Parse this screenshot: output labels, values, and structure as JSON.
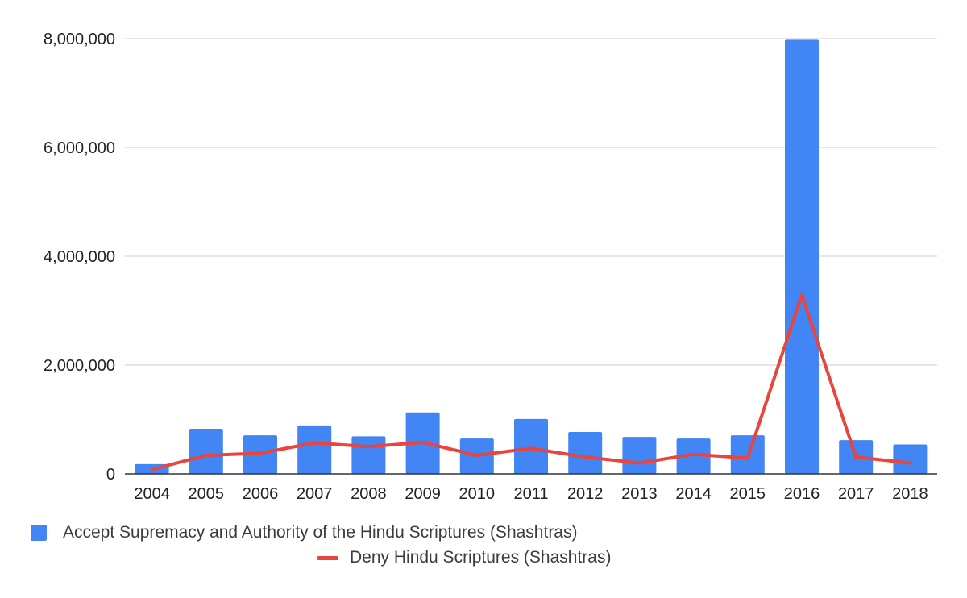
{
  "colors": {
    "bar": "#4285f4",
    "line": "#e8453c",
    "grid": "#cccccc",
    "axis": "#333333",
    "text": "#222222"
  },
  "chart_data": {
    "type": "bar",
    "title": "",
    "xlabel": "",
    "ylabel": "",
    "ylim": [
      0,
      8000000
    ],
    "yticks": [
      0,
      2000000,
      4000000,
      6000000,
      8000000
    ],
    "ytick_labels": [
      "0",
      "2,000,000",
      "4,000,000",
      "6,000,000",
      "8,000,000"
    ],
    "grid": true,
    "legend_position": "bottom",
    "categories": [
      "2004",
      "2005",
      "2006",
      "2007",
      "2008",
      "2009",
      "2010",
      "2011",
      "2012",
      "2013",
      "2014",
      "2015",
      "2016",
      "2017",
      "2018"
    ],
    "series": [
      {
        "name": "Accept Supremacy and Authority of the Hindu Scriptures (Shashtras)",
        "type": "bar",
        "color": "#4285f4",
        "values": [
          180000,
          830000,
          710000,
          890000,
          690000,
          1130000,
          650000,
          1010000,
          770000,
          680000,
          650000,
          710000,
          7980000,
          620000,
          540000
        ]
      },
      {
        "name": "Deny Hindu Scriptures (Shashtras)",
        "type": "line",
        "color": "#e8453c",
        "values": [
          80000,
          340000,
          380000,
          570000,
          500000,
          580000,
          340000,
          470000,
          310000,
          200000,
          360000,
          290000,
          3290000,
          310000,
          200000
        ]
      }
    ]
  }
}
